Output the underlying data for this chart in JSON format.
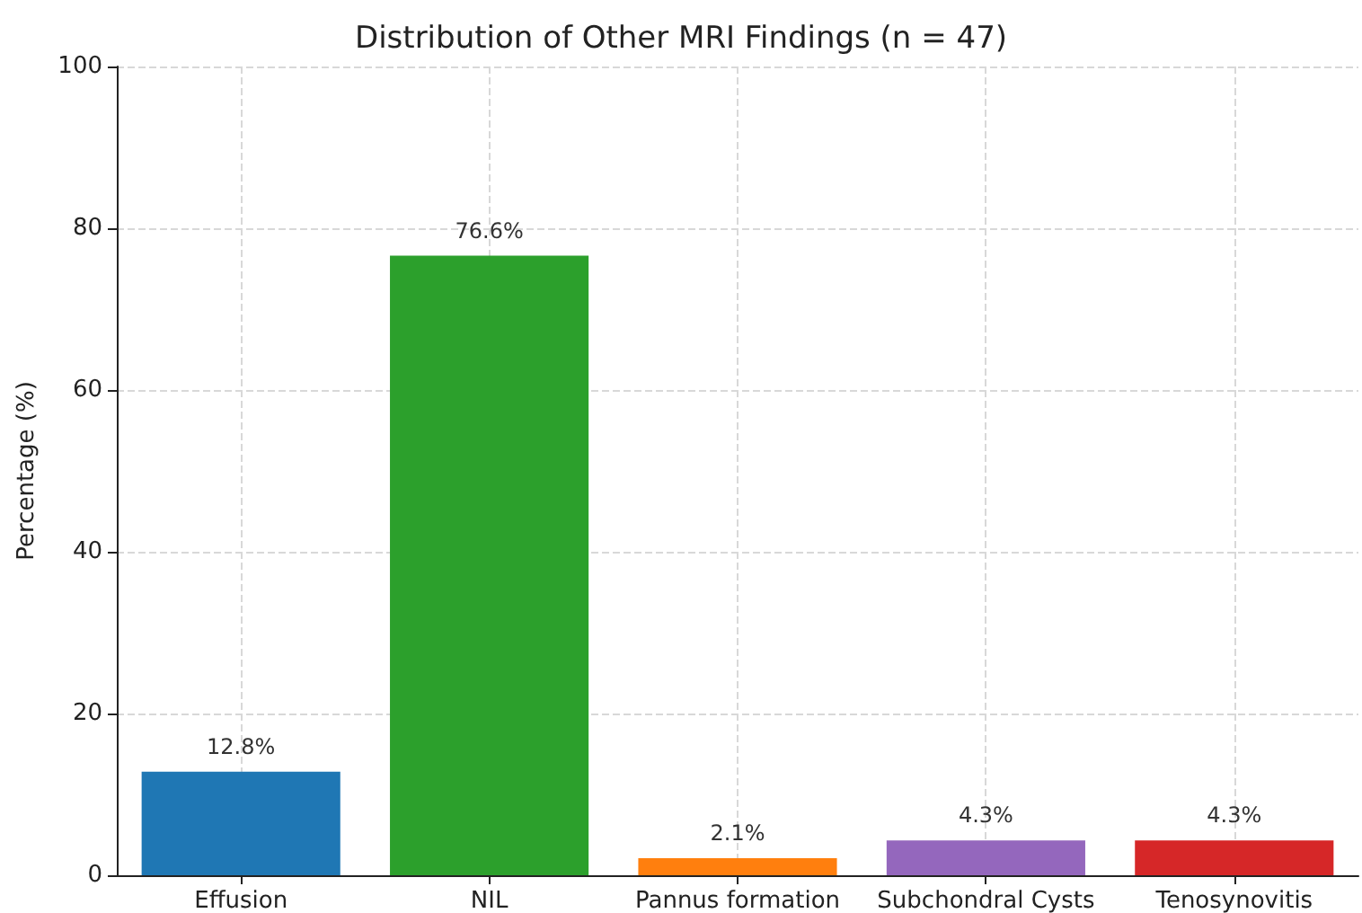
{
  "chart_data": {
    "type": "bar",
    "title": "Distribution of Other MRI Findings (n = 47)",
    "ylabel": "Percentage (%)",
    "categories": [
      "Effusion",
      "NIL",
      "Pannus formation",
      "Subchondral Cysts",
      "Tenosynovitis"
    ],
    "values": [
      12.8,
      76.6,
      2.1,
      4.3,
      4.3
    ],
    "colors": [
      "#1f77b4",
      "#2ca02c",
      "#ff7f0e",
      "#9467bd",
      "#d62728"
    ],
    "value_labels": [
      "12.8%",
      "76.6%",
      "2.1%",
      "4.3%",
      "4.3%"
    ],
    "ylim": [
      0,
      100
    ],
    "yticks": [
      0,
      20,
      40,
      60,
      80,
      100
    ],
    "grid": true
  }
}
